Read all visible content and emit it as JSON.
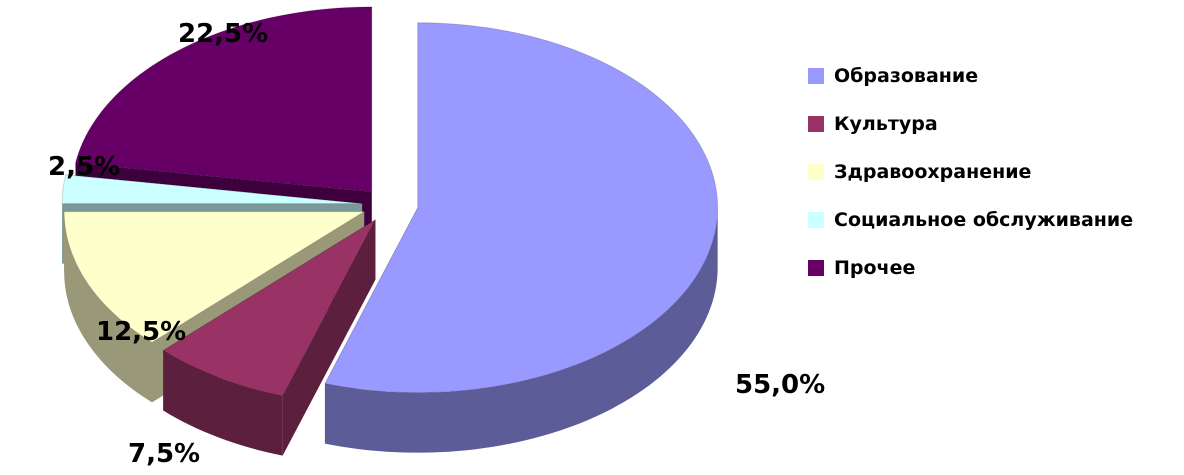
{
  "chart_data": {
    "type": "pie",
    "title": "",
    "categories": [
      "Образование",
      "Культура",
      "Здравоохранение",
      "Социальное обслуживание",
      "Прочее"
    ],
    "values": [
      55.0,
      7.5,
      12.5,
      2.5,
      22.5
    ],
    "value_labels": [
      "55,0%",
      "7,5%",
      "12,5%",
      "2,5%",
      "22,5%"
    ],
    "colors": [
      "#9999ff",
      "#993366",
      "#ffffcc",
      "#ccffff",
      "#660066"
    ],
    "side_colors": [
      "#5c5c99",
      "#5c1f3d",
      "#99997a",
      "#7a9999",
      "#3d003d"
    ],
    "style": "3d-exploded",
    "legend": "right"
  }
}
